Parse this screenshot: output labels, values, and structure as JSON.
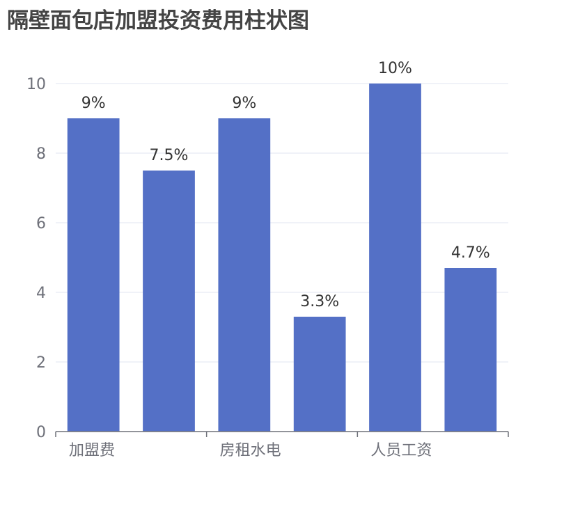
{
  "chart_data": {
    "type": "bar",
    "title": "隔壁面包店加盟投资费用柱状图",
    "categories": [
      "加盟费",
      "",
      "房租水电",
      "",
      "人员工资",
      ""
    ],
    "values": [
      9,
      7.5,
      9,
      3.3,
      10,
      4.7
    ],
    "data_labels": [
      "9%",
      "7.5%",
      "9%",
      "3.3%",
      "10%",
      "4.7%"
    ],
    "ylim": [
      0,
      10
    ],
    "yticks": [
      "0",
      "2",
      "4",
      "6",
      "8",
      "10"
    ],
    "xlabel": "",
    "ylabel": "",
    "grid": true,
    "legend": "none",
    "colors": {
      "bar": "#5470c6",
      "grid": "#e0e6f1",
      "axis": "#6e7079",
      "title": "#444444",
      "label": "#333333"
    }
  }
}
